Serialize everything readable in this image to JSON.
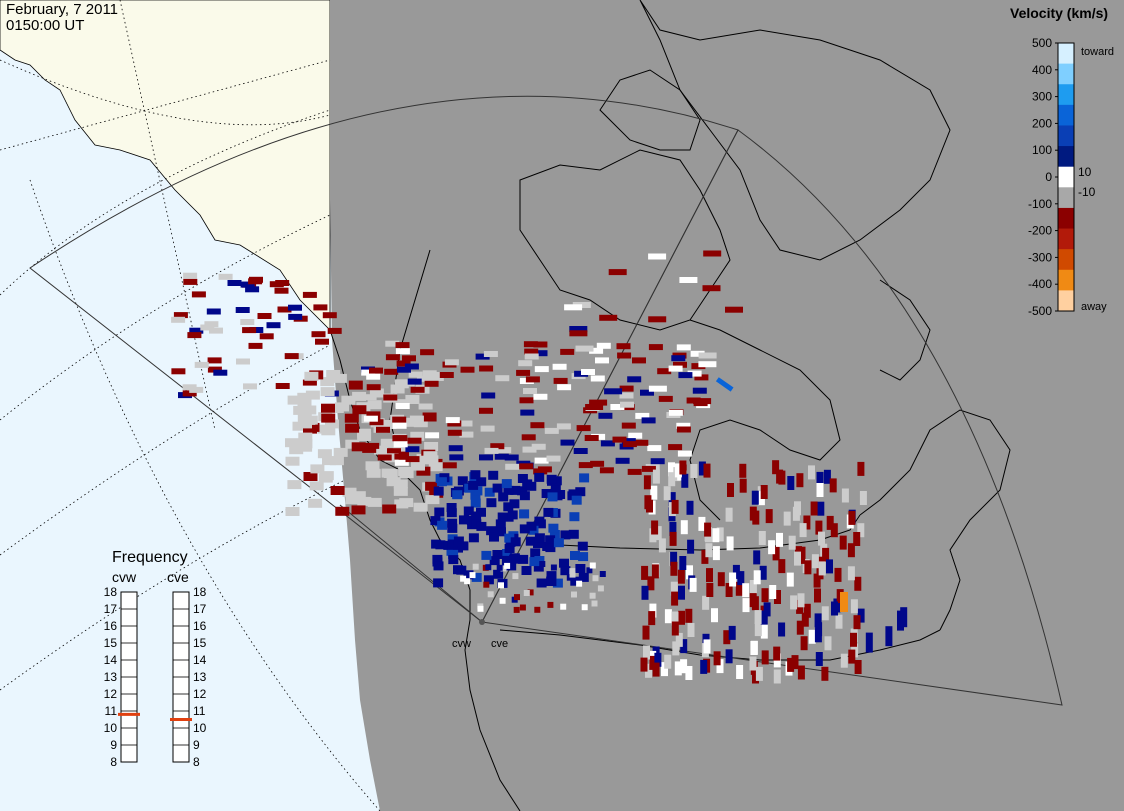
{
  "header": {
    "date": "February, 7 2011",
    "time": "0150:00 UT"
  },
  "colorbar": {
    "title": "Velocity (km/s)",
    "ticks": [
      "500",
      "400",
      "300",
      "200",
      "100",
      "0",
      "-100",
      "-200",
      "-300",
      "-400",
      "-500"
    ],
    "inner_labels": [
      "10",
      "-10"
    ],
    "end_labels": {
      "top": "toward",
      "bottom": "away"
    },
    "colors": [
      "#d6f0ff",
      "#7fcfff",
      "#1e9cf0",
      "#0a64d8",
      "#0a3fb5",
      "#001a80",
      "#ffffff",
      "#a8a8a8",
      "#8b0000",
      "#b21a0a",
      "#d04a00",
      "#f08a14",
      "#ffd0a0"
    ]
  },
  "frequency_panel": {
    "title": "Frequency",
    "radars": [
      {
        "code": "cvw",
        "freq_mhz": 10.8
      },
      {
        "code": "cve",
        "freq_mhz": 10.5
      }
    ],
    "scale": [
      "18",
      "17",
      "16",
      "15",
      "14",
      "13",
      "12",
      "11",
      "10",
      "9",
      "8"
    ]
  },
  "sites": [
    "cvw",
    "cve"
  ],
  "map_colors": {
    "night": "#999999",
    "ocean_day": "#eaf6fe",
    "land_day": "#fafaea",
    "echo_toward": "#00078a",
    "echo_away": "#8b0000",
    "echo_ground": "#cccccc"
  }
}
